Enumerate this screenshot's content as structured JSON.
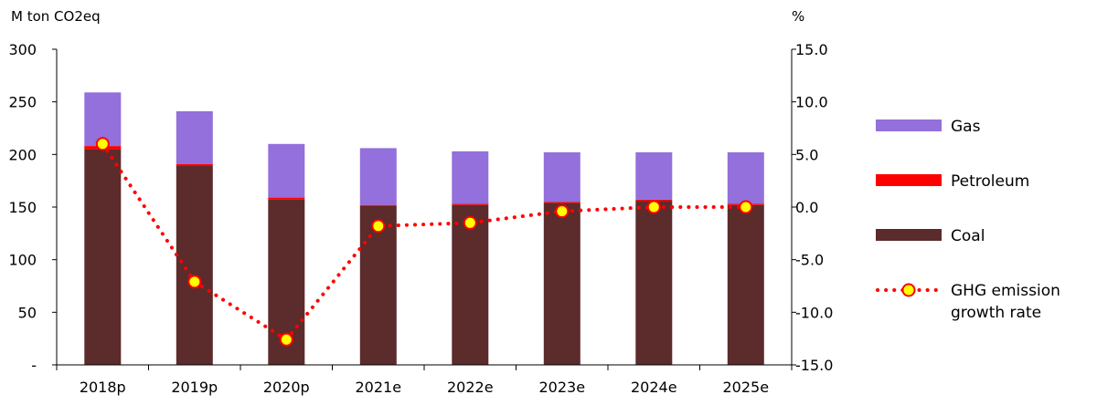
{
  "chart_data": {
    "type": "bar",
    "stacked": true,
    "categories": [
      "2018p",
      "2019p",
      "2020p",
      "2021e",
      "2022e",
      "2023e",
      "2024e",
      "2025e"
    ],
    "series": [
      {
        "name": "Coal",
        "values": [
          205,
          189,
          157,
          151,
          152,
          154,
          156,
          152
        ],
        "color": "#5c2b2b"
      },
      {
        "name": "Petroleum",
        "values": [
          3,
          2,
          2,
          1,
          1,
          1,
          1,
          1
        ],
        "color": "#ff0000"
      },
      {
        "name": "Gas",
        "values": [
          51,
          50,
          51,
          54,
          50,
          47,
          45,
          49
        ],
        "color": "#9370db"
      }
    ],
    "line_series": {
      "name": "GHG emission growth rate",
      "axis": "right",
      "values": [
        6.0,
        -7.1,
        -12.6,
        -1.8,
        -1.5,
        -0.4,
        0.0,
        0.0
      ],
      "line_color": "#ff0000",
      "marker_fill": "#ffff00"
    },
    "y_left": {
      "unit_label": "M ton CO2eq",
      "ylim": [
        0,
        300
      ],
      "ticks": [
        {
          "v": 0,
          "label": "-"
        },
        {
          "v": 50,
          "label": "50"
        },
        {
          "v": 100,
          "label": "100"
        },
        {
          "v": 150,
          "label": "150"
        },
        {
          "v": 200,
          "label": "200"
        },
        {
          "v": 250,
          "label": "250"
        },
        {
          "v": 300,
          "label": "300"
        }
      ]
    },
    "y_right": {
      "unit_label": "%",
      "ylim": [
        -15,
        15
      ],
      "ticks": [
        {
          "v": -15,
          "label": "-15.0"
        },
        {
          "v": -10,
          "label": "-10.0"
        },
        {
          "v": -5,
          "label": "-5.0"
        },
        {
          "v": 0,
          "label": "0.0"
        },
        {
          "v": 5,
          "label": "5.0"
        },
        {
          "v": 10,
          "label": "10.0"
        },
        {
          "v": 15,
          "label": "15.0"
        }
      ]
    },
    "legend": {
      "position": "right",
      "entries": [
        {
          "name": "Gas",
          "lines": [
            "Gas"
          ],
          "kind": "bar",
          "color": "#9370db"
        },
        {
          "name": "Petroleum",
          "lines": [
            "Petroleum"
          ],
          "kind": "bar",
          "color": "#ff0000"
        },
        {
          "name": "Coal",
          "lines": [
            "Coal"
          ],
          "kind": "bar",
          "color": "#5c2b2b"
        },
        {
          "name": "GHG emission growth rate",
          "lines": [
            "GHG emission",
            "growth rate"
          ],
          "kind": "line",
          "color": "#ff0000"
        }
      ]
    },
    "grid": false
  }
}
